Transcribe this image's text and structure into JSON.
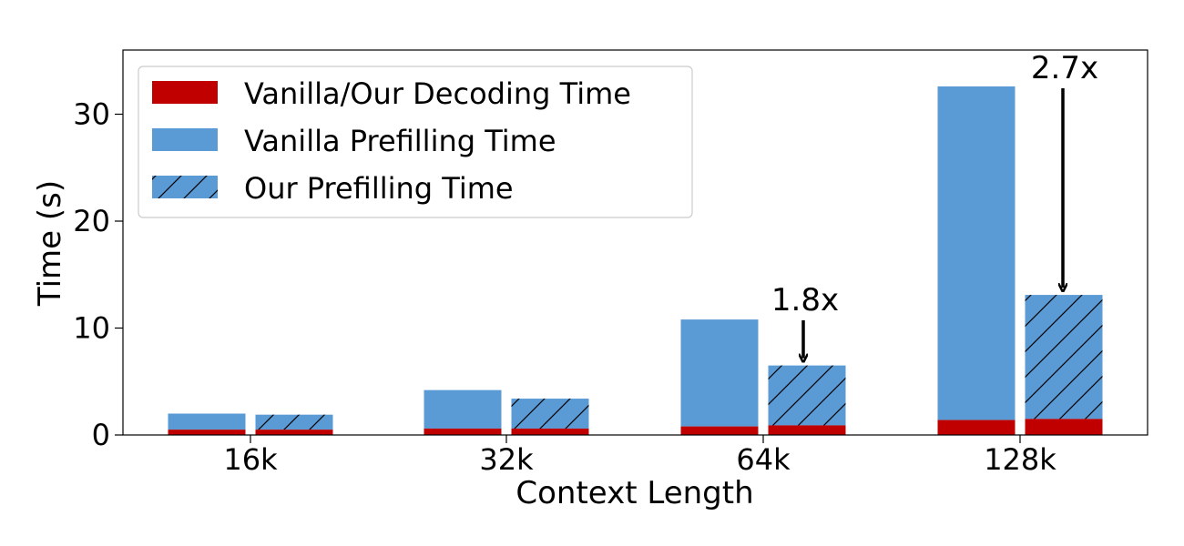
{
  "chart_data": {
    "type": "bar",
    "xlabel": "Context Length",
    "ylabel": "Time (s)",
    "ylim": [
      0,
      36
    ],
    "yticks": [
      0,
      10,
      20,
      30
    ],
    "categories": [
      "16k",
      "32k",
      "64k",
      "128k"
    ],
    "series": [
      {
        "name": "Vanilla/Our Decoding Time",
        "color": "#c00000",
        "pattern": "solid",
        "values_vanilla": [
          0.5,
          0.6,
          0.8,
          1.4
        ],
        "values_ours": [
          0.5,
          0.6,
          0.9,
          1.5
        ]
      },
      {
        "name": "Vanilla Prefilling Time",
        "color": "#5b9bd5",
        "pattern": "solid",
        "totals": [
          2.0,
          4.2,
          10.8,
          32.6
        ]
      },
      {
        "name": "Our Prefilling Time",
        "color": "#5b9bd5",
        "pattern": "hatched",
        "totals": [
          1.9,
          3.4,
          6.5,
          13.1
        ]
      }
    ],
    "annotations": [
      {
        "text": "1.8x",
        "category": "64k"
      },
      {
        "text": "2.7x",
        "category": "128k"
      }
    ],
    "legend_position": "top-left",
    "grid": false
  }
}
